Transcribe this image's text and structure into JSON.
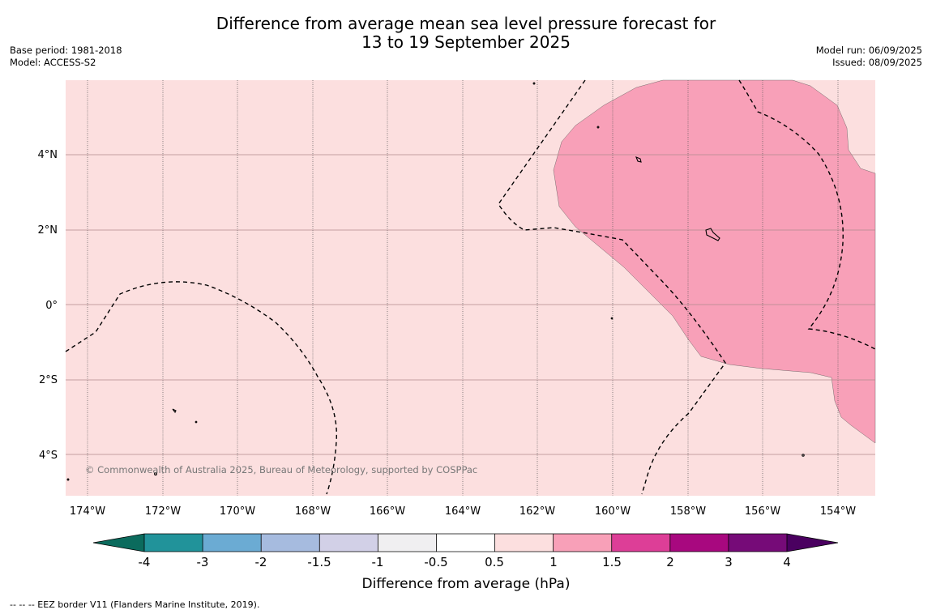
{
  "title": {
    "line1": "Difference from average mean sea level pressure forecast for",
    "line2": "13 to 19 September 2025"
  },
  "meta": {
    "base_period": "Base period: 1981-2018",
    "model": "Model: ACCESS-S2",
    "model_run": "Model run: 06/09/2025",
    "issued": "Issued: 08/09/2025"
  },
  "map": {
    "lat_labels": [
      "4°N",
      "2°N",
      "0°",
      "2°S",
      "4°S"
    ],
    "lon_labels": [
      "174°W",
      "172°W",
      "170°W",
      "168°W",
      "166°W",
      "164°W",
      "162°W",
      "160°W",
      "158°W",
      "156°W",
      "154°W"
    ],
    "background_color": "#fcdfdf",
    "anomaly_region_color": "#f8a0b8",
    "copyright": "© Commonwealth of Australia 2025, Bureau of Meteorology, supported by COSPPac"
  },
  "colorbar": {
    "labels": [
      "-4",
      "-3",
      "-2",
      "-1.5",
      "-1",
      "-0.5",
      "0.5",
      "1",
      "1.5",
      "2",
      "3",
      "4"
    ],
    "low_extend_color": "#0b6b5d",
    "colors": [
      "#21939a",
      "#6babd3",
      "#a6bbdf",
      "#d2d0e7",
      "#f0eff1",
      "#ffffff",
      "#fcdfdf",
      "#f8a0b8",
      "#dd3e97",
      "#a8087f",
      "#760b78"
    ],
    "high_extend_color": "#4a0060",
    "label": "Difference from average (hPa)"
  },
  "footer": {
    "legend": "--  --  -- EEZ border V11 (Flanders Marine Institute, 2019)."
  }
}
